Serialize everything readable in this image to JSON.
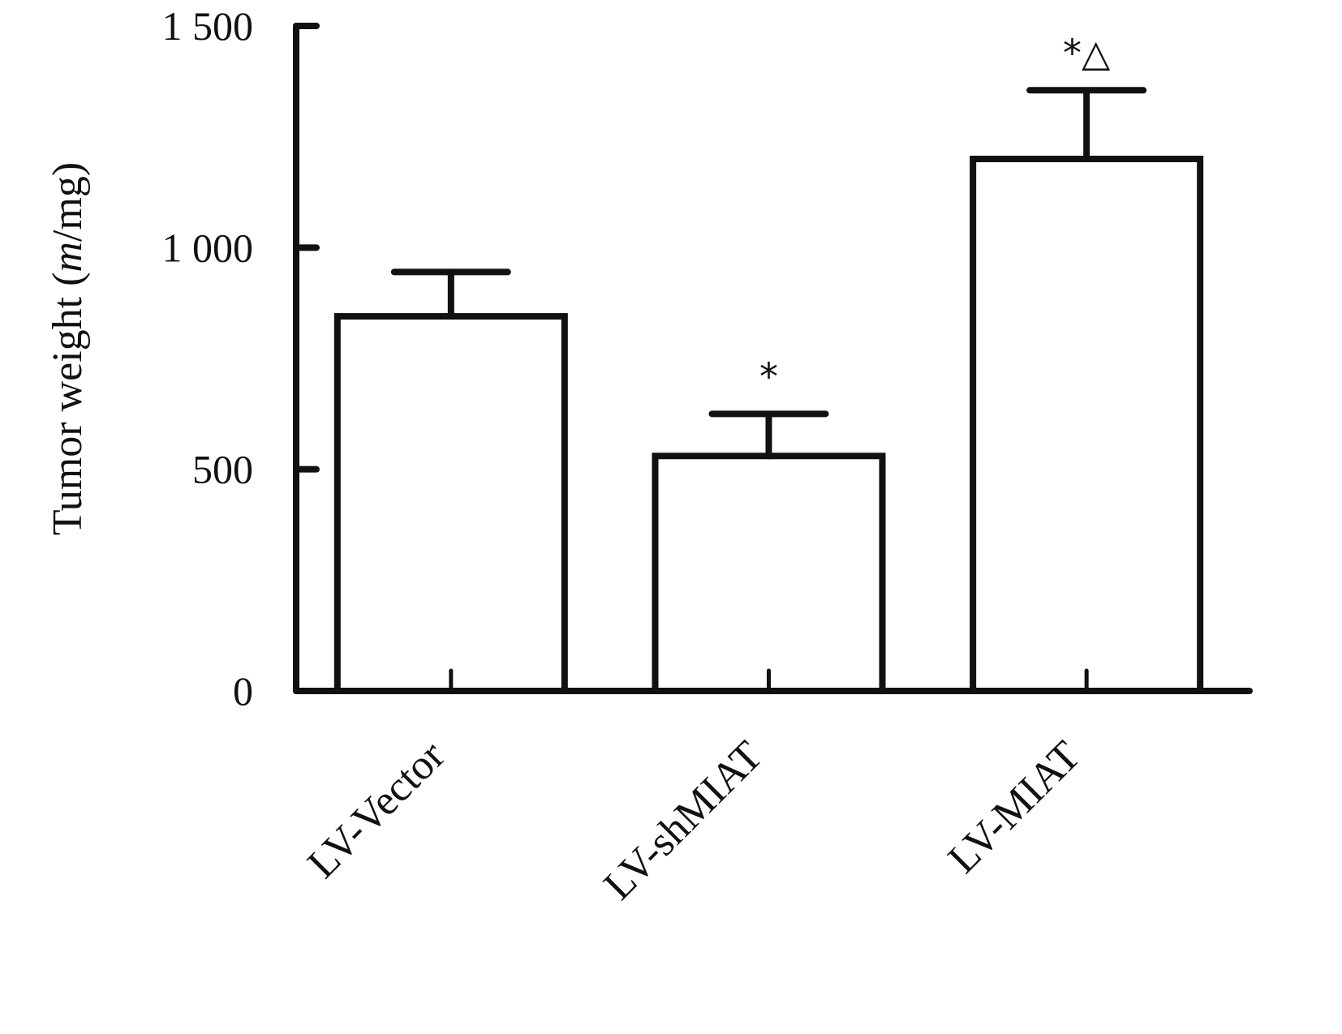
{
  "chart_data": {
    "type": "bar",
    "title": "",
    "ylabel_prefix": "Tumor weight (",
    "ylabel_unit_var": "m",
    "ylabel_suffix": "/mg)",
    "xlabel": "",
    "categories": [
      "LV-Vector",
      "LV-shMIAT",
      "LV-MIAT"
    ],
    "values": [
      845,
      530,
      1200
    ],
    "errors": [
      100,
      95,
      155
    ],
    "annotations": [
      "",
      "*",
      "*△"
    ],
    "ylim": [
      0,
      1500
    ],
    "yticks": [
      0,
      500,
      1000,
      1500
    ],
    "ytick_labels": [
      "0",
      "500",
      "1 000",
      "1 500"
    ],
    "grid": false,
    "legend": "none",
    "bar_fill": "#ffffff",
    "stroke_color": "#111111"
  }
}
